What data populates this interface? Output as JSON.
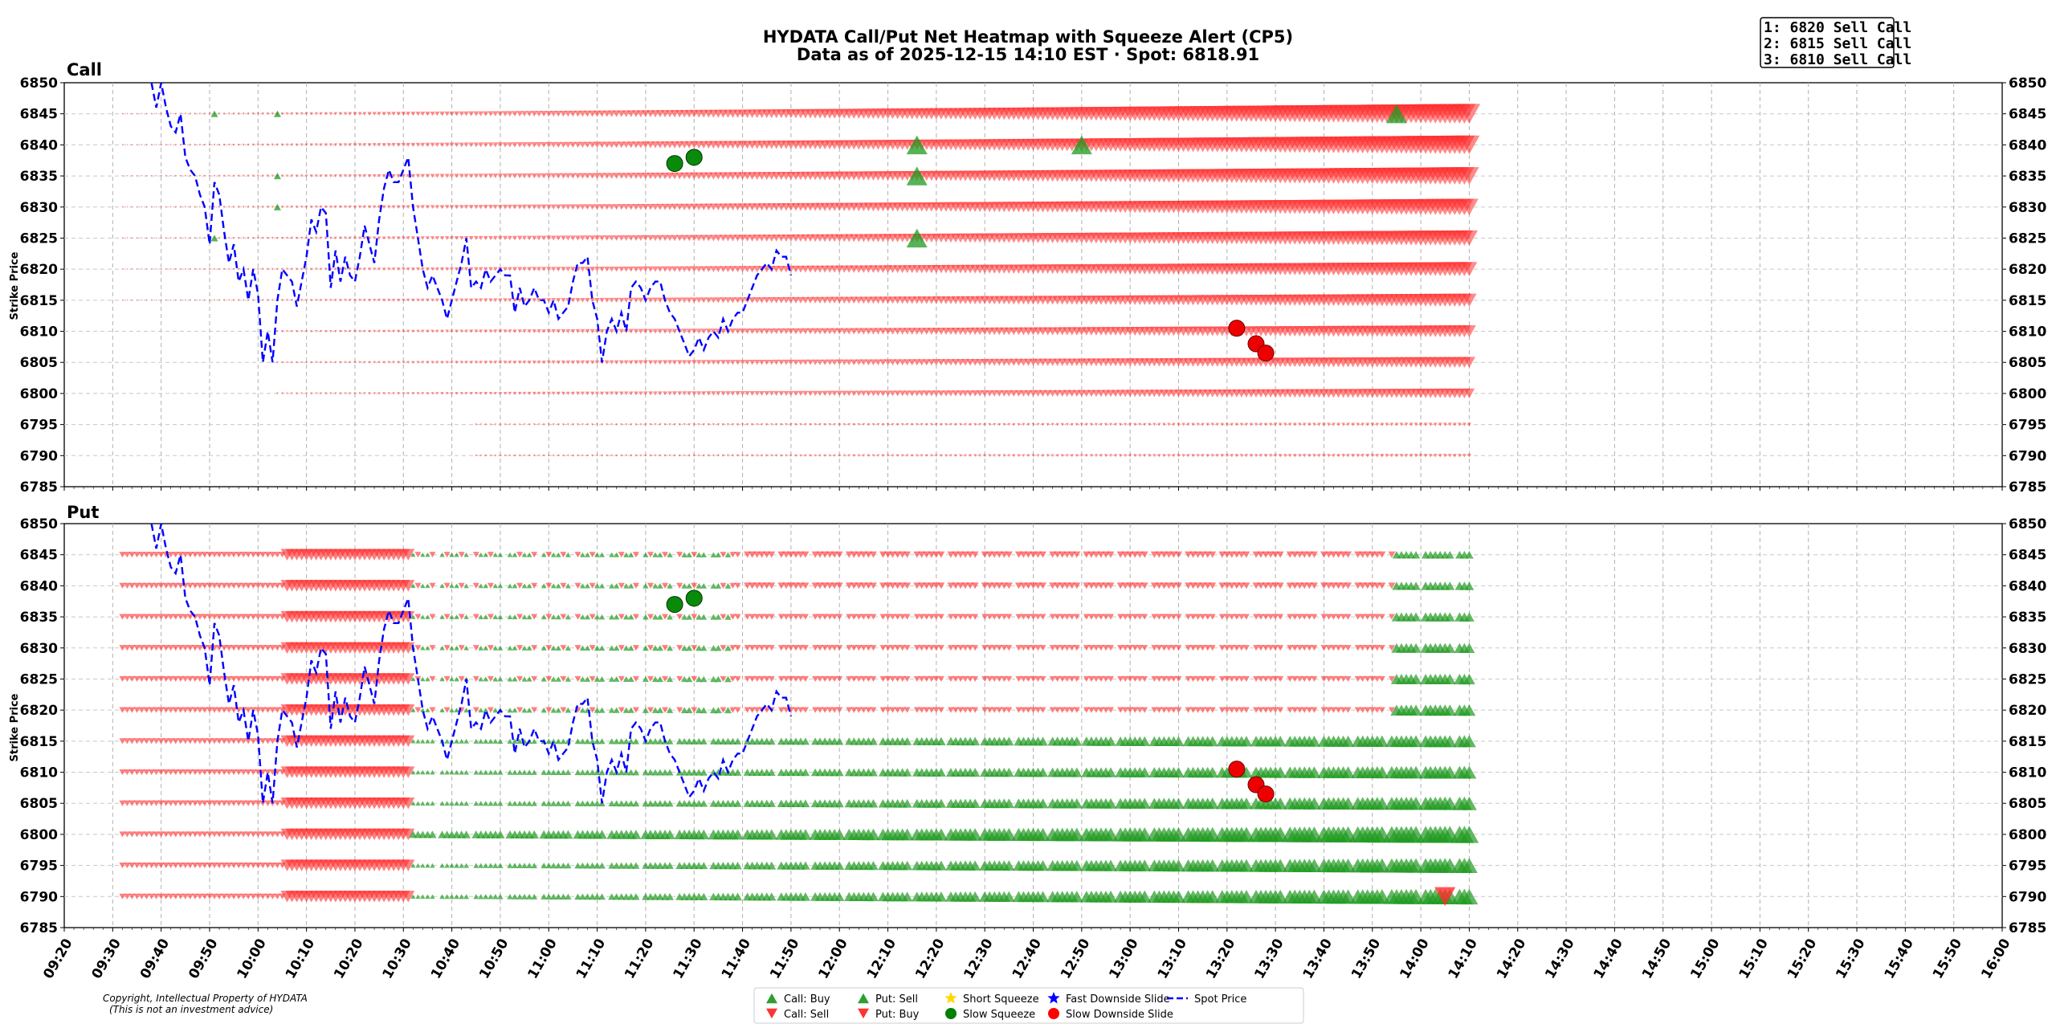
{
  "chart_data": {
    "type": "scatter",
    "title": "HYDATA Call/Put Net Heatmap with Squeeze Alert (CP5)",
    "subtitle": "Data as of 2025-12-15 14:10 EST · Spot: 6818.91",
    "ylabel": "Strike Price",
    "ylim": [
      6785,
      6850
    ],
    "yticks": [
      6785,
      6790,
      6795,
      6800,
      6805,
      6810,
      6815,
      6820,
      6825,
      6830,
      6835,
      6840,
      6845,
      6850
    ],
    "xlim": [
      "09:20",
      "16:00"
    ],
    "xticks": [
      "09:20",
      "09:30",
      "09:40",
      "09:50",
      "10:00",
      "10:10",
      "10:20",
      "10:30",
      "10:40",
      "10:50",
      "11:00",
      "11:10",
      "11:20",
      "11:30",
      "11:40",
      "11:50",
      "12:00",
      "12:10",
      "12:20",
      "12:30",
      "12:40",
      "12:50",
      "13:00",
      "13:10",
      "13:20",
      "13:30",
      "13:40",
      "13:50",
      "14:00",
      "14:10",
      "14:20",
      "14:30",
      "14:40",
      "14:50",
      "15:00",
      "15:10",
      "15:20",
      "15:30",
      "15:40",
      "15:50",
      "16:00"
    ],
    "annotation": [
      "1: 6820 Sell Call",
      "2: 6815 Sell Call",
      "3: 6810 Sell Call"
    ],
    "copyright": [
      "Copyright, Intellectual Property of HYDATA",
      "(This is not an investment advice)"
    ],
    "legend": [
      {
        "label": "Call: Buy",
        "marker": "triangle-up",
        "color": "#2ca02c"
      },
      {
        "label": "Call: Sell",
        "marker": "triangle-down",
        "color": "#ff3333"
      },
      {
        "label": "Put: Sell",
        "marker": "triangle-up",
        "color": "#2ca02c"
      },
      {
        "label": "Put: Buy",
        "marker": "triangle-down",
        "color": "#ff3333"
      },
      {
        "label": "Short Squeeze",
        "marker": "star",
        "color": "#ffd700"
      },
      {
        "label": "Slow Squeeze",
        "marker": "circle",
        "color": "#008000"
      },
      {
        "label": "Fast Downside Slide",
        "marker": "star",
        "color": "#0000ff"
      },
      {
        "label": "Slow Downside Slide",
        "marker": "circle",
        "color": "#ff0000"
      },
      {
        "label": "Spot Price",
        "marker": "dash",
        "color": "#0000ff"
      }
    ],
    "panels": [
      {
        "name": "Call"
      },
      {
        "name": "Put"
      }
    ],
    "spot_series": {
      "name": "Spot Price",
      "start_time": "09:38",
      "step_minutes": 1,
      "values": [
        6850,
        6846,
        6850,
        6846,
        6843,
        6842,
        6845,
        6838,
        6836,
        6835,
        6832,
        6830,
        6824,
        6834,
        6832,
        6826,
        6821,
        6824,
        6818,
        6820,
        6815,
        6820,
        6816,
        6805,
        6810,
        6805,
        6815,
        6820,
        6819,
        6818,
        6814,
        6818,
        6822,
        6828,
        6826,
        6830,
        6829,
        6817,
        6823,
        6818,
        6822,
        6819,
        6818,
        6822,
        6827,
        6824,
        6821,
        6828,
        6833,
        6836,
        6834,
        6834,
        6836,
        6838,
        6830,
        6825,
        6820,
        6817,
        6819,
        6817,
        6815,
        6812,
        6815,
        6818,
        6821,
        6825,
        6817,
        6818,
        6817,
        6820,
        6818,
        6819,
        6820,
        6819,
        6819,
        6813,
        6817,
        6814,
        6815,
        6817,
        6815,
        6815,
        6813,
        6815,
        6812,
        6813,
        6814,
        6818,
        6821,
        6821,
        6822,
        6815,
        6812,
        6805,
        6810,
        6812,
        6810,
        6813,
        6810,
        6817,
        6818,
        6817,
        6815,
        6817,
        6818,
        6818,
        6815,
        6813,
        6812,
        6810,
        6808,
        6806,
        6807,
        6809,
        6807,
        6809,
        6810,
        6809,
        6812,
        6810,
        6812,
        6813,
        6813,
        6815,
        6817,
        6819,
        6820,
        6821,
        6820,
        6823,
        6822,
        6822,
        6819
      ]
    },
    "slow_squeeze_points": [
      {
        "time": "11:26",
        "strike": 6837
      },
      {
        "time": "11:30",
        "strike": 6838
      }
    ],
    "slow_slide_points": [
      {
        "time": "13:22",
        "strike": 6810.5
      },
      {
        "time": "13:26",
        "strike": 6808
      },
      {
        "time": "13:28",
        "strike": 6806.5
      }
    ],
    "call_extra_markers": [
      {
        "time": "12:16",
        "strike": 6840,
        "dir": "up"
      },
      {
        "time": "12:16",
        "strike": 6835,
        "dir": "up"
      },
      {
        "time": "12:16",
        "strike": 6825,
        "dir": "up"
      },
      {
        "time": "12:50",
        "strike": 6840,
        "dir": "up"
      },
      {
        "time": "13:55",
        "strike": 6845,
        "dir": "up"
      }
    ],
    "put_extra_markers": [
      {
        "time": "14:05",
        "strike": 6790,
        "dir": "down"
      }
    ]
  }
}
